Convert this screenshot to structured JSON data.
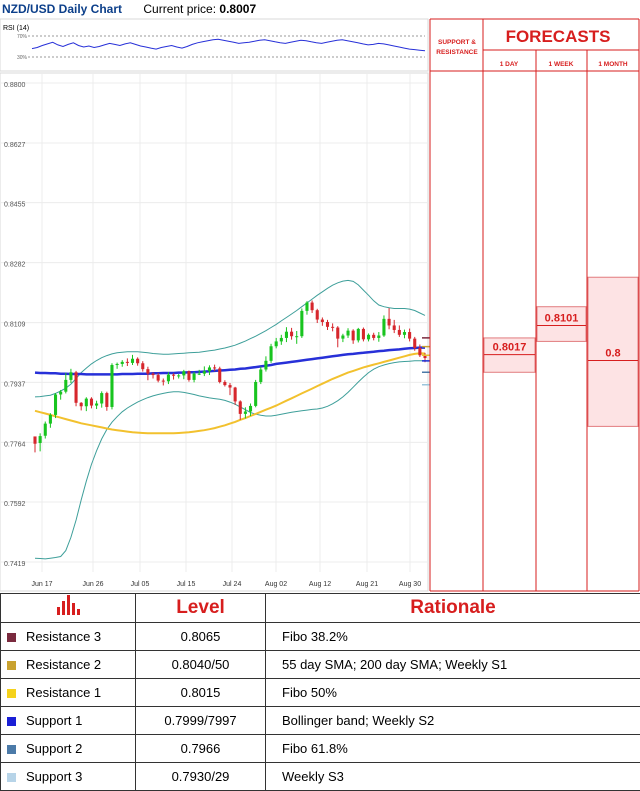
{
  "header": {
    "pair": "NZD/USD Daily Chart",
    "current_price_label": "Current price:",
    "current_price": "0.8007"
  },
  "rsi": {
    "label": "RSI (14)",
    "levels": [
      "70%",
      "30%"
    ]
  },
  "chart_data": {
    "type": "candlestick",
    "y_ticks": [
      "0.8800",
      "0.8627",
      "0.8455",
      "0.8282",
      "0.8109",
      "0.7937",
      "0.7764",
      "0.7592",
      "0.7419"
    ],
    "x_ticks": [
      "Jun 17",
      "Jun 26",
      "Jul 05",
      "Jul 15",
      "Jul 24",
      "Aug 02",
      "Aug 12",
      "Aug 21",
      "Aug 30"
    ],
    "ylim": [
      0.7419,
      0.88
    ],
    "candles": [
      [
        0.7781,
        0.776,
        0.7735,
        0.7781
      ],
      [
        0.7762,
        0.7782,
        0.7738,
        0.779
      ],
      [
        0.7783,
        0.7818,
        0.7775,
        0.7824
      ],
      [
        0.7818,
        0.7843,
        0.7806,
        0.7848
      ],
      [
        0.7843,
        0.7902,
        0.7834,
        0.7906
      ],
      [
        0.7902,
        0.791,
        0.7887,
        0.7915
      ],
      [
        0.791,
        0.7944,
        0.7905,
        0.7964
      ],
      [
        0.7944,
        0.7966,
        0.7935,
        0.7976
      ],
      [
        0.7966,
        0.7878,
        0.7868,
        0.797
      ],
      [
        0.7878,
        0.7868,
        0.7856,
        0.788
      ],
      [
        0.7868,
        0.789,
        0.7854,
        0.7894
      ],
      [
        0.789,
        0.787,
        0.7862,
        0.7894
      ],
      [
        0.787,
        0.7876,
        0.786,
        0.7884
      ],
      [
        0.7876,
        0.7906,
        0.7864,
        0.7911
      ],
      [
        0.7906,
        0.7866,
        0.7855,
        0.791
      ],
      [
        0.7866,
        0.7987,
        0.7859,
        0.7992
      ],
      [
        0.7987,
        0.799,
        0.7976,
        0.7994
      ],
      [
        0.799,
        0.7996,
        0.7982,
        0.8001
      ],
      [
        0.7996,
        0.7993,
        0.7984,
        0.8006
      ],
      [
        0.7993,
        0.8005,
        0.7987,
        0.8016
      ],
      [
        0.8005,
        0.7992,
        0.7985,
        0.8009
      ],
      [
        0.7992,
        0.7975,
        0.7968,
        0.7998
      ],
      [
        0.7975,
        0.7962,
        0.7943,
        0.7982
      ],
      [
        0.7962,
        0.7958,
        0.7948,
        0.7966
      ],
      [
        0.7958,
        0.7942,
        0.7937,
        0.7964
      ],
      [
        0.7942,
        0.794,
        0.7928,
        0.7948
      ],
      [
        0.794,
        0.7959,
        0.7932,
        0.7966
      ],
      [
        0.7959,
        0.7956,
        0.7945,
        0.7963
      ],
      [
        0.7956,
        0.7957,
        0.7948,
        0.7961
      ],
      [
        0.7957,
        0.7969,
        0.7946,
        0.7973
      ],
      [
        0.7969,
        0.7944,
        0.7939,
        0.7971
      ],
      [
        0.7944,
        0.7962,
        0.7937,
        0.7967
      ],
      [
        0.7962,
        0.7962,
        0.7958,
        0.7973
      ],
      [
        0.7962,
        0.7969,
        0.7955,
        0.7983
      ],
      [
        0.7969,
        0.798,
        0.7958,
        0.7986
      ],
      [
        0.798,
        0.7977,
        0.7969,
        0.7988
      ],
      [
        0.7977,
        0.7938,
        0.7934,
        0.7982
      ],
      [
        0.7938,
        0.7929,
        0.7925,
        0.7943
      ],
      [
        0.7929,
        0.7922,
        0.79,
        0.7935
      ],
      [
        0.7922,
        0.7882,
        0.7872,
        0.7924
      ],
      [
        0.7882,
        0.7846,
        0.7829,
        0.7885
      ],
      [
        0.7846,
        0.7853,
        0.7833,
        0.7865
      ],
      [
        0.7853,
        0.7869,
        0.784,
        0.7876
      ],
      [
        0.7869,
        0.7938,
        0.7865,
        0.7944
      ],
      [
        0.7938,
        0.7974,
        0.7932,
        0.7982
      ],
      [
        0.7974,
        0.7999,
        0.7968,
        0.8012
      ],
      [
        0.7999,
        0.8041,
        0.7993,
        0.8048
      ],
      [
        0.8041,
        0.8055,
        0.8035,
        0.8065
      ],
      [
        0.8055,
        0.8065,
        0.8045,
        0.8074
      ],
      [
        0.8065,
        0.8083,
        0.8053,
        0.8096
      ],
      [
        0.8083,
        0.807,
        0.806,
        0.8094
      ],
      [
        0.807,
        0.807,
        0.8048,
        0.8085
      ],
      [
        0.807,
        0.8143,
        0.8065,
        0.815
      ],
      [
        0.8143,
        0.8167,
        0.8132,
        0.8171
      ],
      [
        0.8167,
        0.8145,
        0.8137,
        0.8173
      ],
      [
        0.8145,
        0.8118,
        0.8108,
        0.8149
      ],
      [
        0.8118,
        0.8111,
        0.81,
        0.8124
      ],
      [
        0.8111,
        0.8097,
        0.8088,
        0.8117
      ],
      [
        0.8097,
        0.8095,
        0.8084,
        0.8107
      ],
      [
        0.8095,
        0.8063,
        0.8038,
        0.8099
      ],
      [
        0.8063,
        0.8072,
        0.8053,
        0.8077
      ],
      [
        0.8072,
        0.8086,
        0.8065,
        0.8093
      ],
      [
        0.8086,
        0.8058,
        0.8048,
        0.809
      ],
      [
        0.8058,
        0.8091,
        0.8052,
        0.8094
      ],
      [
        0.8091,
        0.8061,
        0.8055,
        0.8095
      ],
      [
        0.8061,
        0.8074,
        0.8055,
        0.8078
      ],
      [
        0.8074,
        0.8065,
        0.8058,
        0.808
      ],
      [
        0.8065,
        0.8072,
        0.8054,
        0.8082
      ],
      [
        0.8072,
        0.812,
        0.8068,
        0.813
      ],
      [
        0.812,
        0.8101,
        0.809,
        0.8151
      ],
      [
        0.8101,
        0.8088,
        0.8079,
        0.8117
      ],
      [
        0.8088,
        0.8074,
        0.8068,
        0.8101
      ],
      [
        0.8074,
        0.8082,
        0.8064,
        0.8089
      ],
      [
        0.8082,
        0.8063,
        0.8055,
        0.8092
      ],
      [
        0.8063,
        0.8036,
        0.8028,
        0.8068
      ],
      [
        0.8036,
        0.8015,
        0.801,
        0.8046
      ],
      [
        0.8015,
        0.8007,
        0.7995,
        0.8022
      ]
    ],
    "sma55": [
      0.7855,
      0.7851,
      0.7847,
      0.7843,
      0.7839,
      0.7835,
      0.7831,
      0.7827,
      0.7823,
      0.7819,
      0.7816,
      0.7813,
      0.781,
      0.7807,
      0.7804,
      0.7801,
      0.7799,
      0.7797,
      0.7795,
      0.7793,
      0.7792,
      0.7791,
      0.779,
      0.779,
      0.779,
      0.779,
      0.779,
      0.779,
      0.7791,
      0.7792,
      0.7793,
      0.7795,
      0.7797,
      0.7799,
      0.7802,
      0.7805,
      0.7809,
      0.7813,
      0.7818,
      0.7823,
      0.7829,
      0.7834,
      0.784,
      0.7846,
      0.7852,
      0.7858,
      0.7864,
      0.787,
      0.7877,
      0.7884,
      0.7891,
      0.7898,
      0.7905,
      0.7912,
      0.7919,
      0.7926,
      0.7933,
      0.794,
      0.7947,
      0.7953,
      0.7959,
      0.7965,
      0.797,
      0.7975,
      0.798,
      0.7984,
      0.7988,
      0.7992,
      0.7996,
      0.8,
      0.8004,
      0.8008,
      0.8012,
      0.8016,
      0.8019,
      0.8021,
      0.802
    ],
    "sma200": [
      0.7965,
      0.7964,
      0.7964,
      0.7963,
      0.7963,
      0.7962,
      0.7962,
      0.7961,
      0.7961,
      0.7961,
      0.796,
      0.796,
      0.796,
      0.796,
      0.796,
      0.796,
      0.796,
      0.7961,
      0.7961,
      0.7961,
      0.7962,
      0.7962,
      0.7962,
      0.7963,
      0.7963,
      0.7964,
      0.7964,
      0.7964,
      0.7965,
      0.7965,
      0.7966,
      0.7966,
      0.7967,
      0.7968,
      0.7969,
      0.797,
      0.7971,
      0.7972,
      0.7973,
      0.7974,
      0.7976,
      0.7977,
      0.7979,
      0.7981,
      0.7983,
      0.7985,
      0.7987,
      0.799,
      0.7992,
      0.7994,
      0.7996,
      0.7998,
      0.8,
      0.8002,
      0.8004,
      0.8006,
      0.8008,
      0.801,
      0.8012,
      0.8014,
      0.8016,
      0.8018,
      0.8019,
      0.8021,
      0.8022,
      0.8024,
      0.8025,
      0.8027,
      0.8028,
      0.803,
      0.8031,
      0.8032,
      0.8034,
      0.8035,
      0.8036,
      0.8037,
      0.8037
    ],
    "bollinger_upper": [
      0.7895,
      0.7896,
      0.7898,
      0.79,
      0.7905,
      0.7912,
      0.792,
      0.7932,
      0.7948,
      0.7965,
      0.7978,
      0.799,
      0.8,
      0.8008,
      0.8014,
      0.8019,
      0.8022,
      0.8024,
      0.8025,
      0.8025,
      0.8025,
      0.8024,
      0.8022,
      0.802,
      0.8019,
      0.8018,
      0.8018,
      0.8019,
      0.802,
      0.8021,
      0.8022,
      0.8023,
      0.8024,
      0.8026,
      0.8028,
      0.803,
      0.8033,
      0.8036,
      0.804,
      0.8044,
      0.805,
      0.8056,
      0.8063,
      0.807,
      0.8078,
      0.8086,
      0.8095,
      0.8104,
      0.8114,
      0.8124,
      0.8134,
      0.8144,
      0.8155,
      0.8166,
      0.8177,
      0.8188,
      0.8198,
      0.8208,
      0.8217,
      0.8224,
      0.8229,
      0.8231,
      0.8228,
      0.8218,
      0.8203,
      0.8188,
      0.8172,
      0.816,
      0.8155,
      0.8152,
      0.815,
      0.815,
      0.815,
      0.8148,
      0.8144,
      0.8137,
      0.813
    ],
    "bollinger_lower": [
      0.743,
      0.7429,
      0.7428,
      0.743,
      0.7432,
      0.7435,
      0.7452,
      0.749,
      0.754,
      0.7598,
      0.7652,
      0.77,
      0.774,
      0.7774,
      0.7801,
      0.7822,
      0.7838,
      0.7852,
      0.7863,
      0.7872,
      0.788,
      0.7887,
      0.7893,
      0.7898,
      0.7902,
      0.7905,
      0.7908,
      0.791,
      0.791,
      0.7908,
      0.7905,
      0.7902,
      0.7898,
      0.7895,
      0.7892,
      0.789,
      0.7888,
      0.7885,
      0.788,
      0.7874,
      0.7866,
      0.7858,
      0.785,
      0.7845,
      0.7842,
      0.784,
      0.784,
      0.7842,
      0.7845,
      0.7848,
      0.7851,
      0.7853,
      0.7855,
      0.7857,
      0.7859,
      0.786,
      0.7863,
      0.7868,
      0.7875,
      0.7884,
      0.7895,
      0.7908,
      0.7923,
      0.7938,
      0.7952,
      0.7965,
      0.7975,
      0.7982,
      0.7987,
      0.7991,
      0.7994,
      0.7996,
      0.7997,
      0.7998,
      0.7999,
      0.7999,
      0.7999
    ],
    "rsi_series": [
      46,
      48,
      52,
      55,
      58,
      53,
      50,
      54,
      57,
      52,
      49,
      51,
      48,
      50,
      53,
      56,
      54,
      52,
      55,
      57,
      54,
      51,
      49,
      47,
      45,
      48,
      50,
      52,
      49,
      47,
      50,
      54,
      57,
      59,
      61,
      63,
      64,
      62,
      60,
      58,
      56,
      57,
      58,
      60,
      62,
      63,
      61,
      59,
      57,
      56,
      58,
      60,
      62,
      61,
      59,
      57,
      56,
      58,
      60,
      62,
      63,
      61,
      59,
      57,
      55,
      53,
      54,
      56,
      55,
      53,
      51,
      49,
      47,
      45,
      44,
      43,
      42
    ],
    "levels": [
      {
        "label": "0.8065",
        "value": 0.8065,
        "color": "#7a2a3e"
      },
      {
        "label": "0.8040",
        "value": 0.804,
        "color": "#c9a22f"
      },
      {
        "label": "0.8015",
        "value": 0.8015,
        "color": "#e7c22e"
      },
      {
        "label": "0.7999",
        "value": 0.7999,
        "color": "#1a2fd6"
      },
      {
        "label": "0.7966",
        "value": 0.7966,
        "color": "#4b7aa8"
      },
      {
        "label": "0.7930",
        "value": 0.793,
        "color": "#9bc6dc"
      }
    ]
  },
  "forecast": {
    "title": "FORECASTS",
    "sr_label_1": "SUPPORT &",
    "sr_label_2": "RESISTANCE",
    "columns": [
      "1 DAY",
      "1 WEEK",
      "1 MONTH"
    ],
    "values": [
      {
        "label": "0.8017",
        "value": 0.8017,
        "range": [
          0.7966,
          0.8065
        ]
      },
      {
        "label": "0.8101",
        "value": 0.8101,
        "range": [
          0.8055,
          0.8155
        ]
      },
      {
        "label": "0.8",
        "value": 0.8,
        "range": [
          0.781,
          0.824
        ]
      }
    ]
  },
  "table": {
    "headers": [
      "Level",
      "Rationale"
    ],
    "rows": [
      {
        "name": "Resistance 3",
        "level": "0.8065",
        "rationale": "Fibo 38.2%",
        "color": "#7a2a3e"
      },
      {
        "name": "Resistance 2",
        "level": "0.8040/50",
        "rationale": "55 day SMA; 200 day SMA; Weekly S1",
        "color": "#c9a22f"
      },
      {
        "name": "Resistance 1",
        "level": "0.8015",
        "rationale": "Fibo 50%",
        "color": "#f5d21b"
      },
      {
        "name": "Support 1",
        "level": "0.7999/7997",
        "rationale": "Bollinger band; Weekly S2",
        "color": "#1a1fd6"
      },
      {
        "name": "Support 2",
        "level": "0.7966",
        "rationale": "Fibo 61.8%",
        "color": "#4b7aa8"
      },
      {
        "name": "Support 3",
        "level": "0.7930/29",
        "rationale": "Weekly S3",
        "color": "#b7d4e8"
      }
    ]
  }
}
